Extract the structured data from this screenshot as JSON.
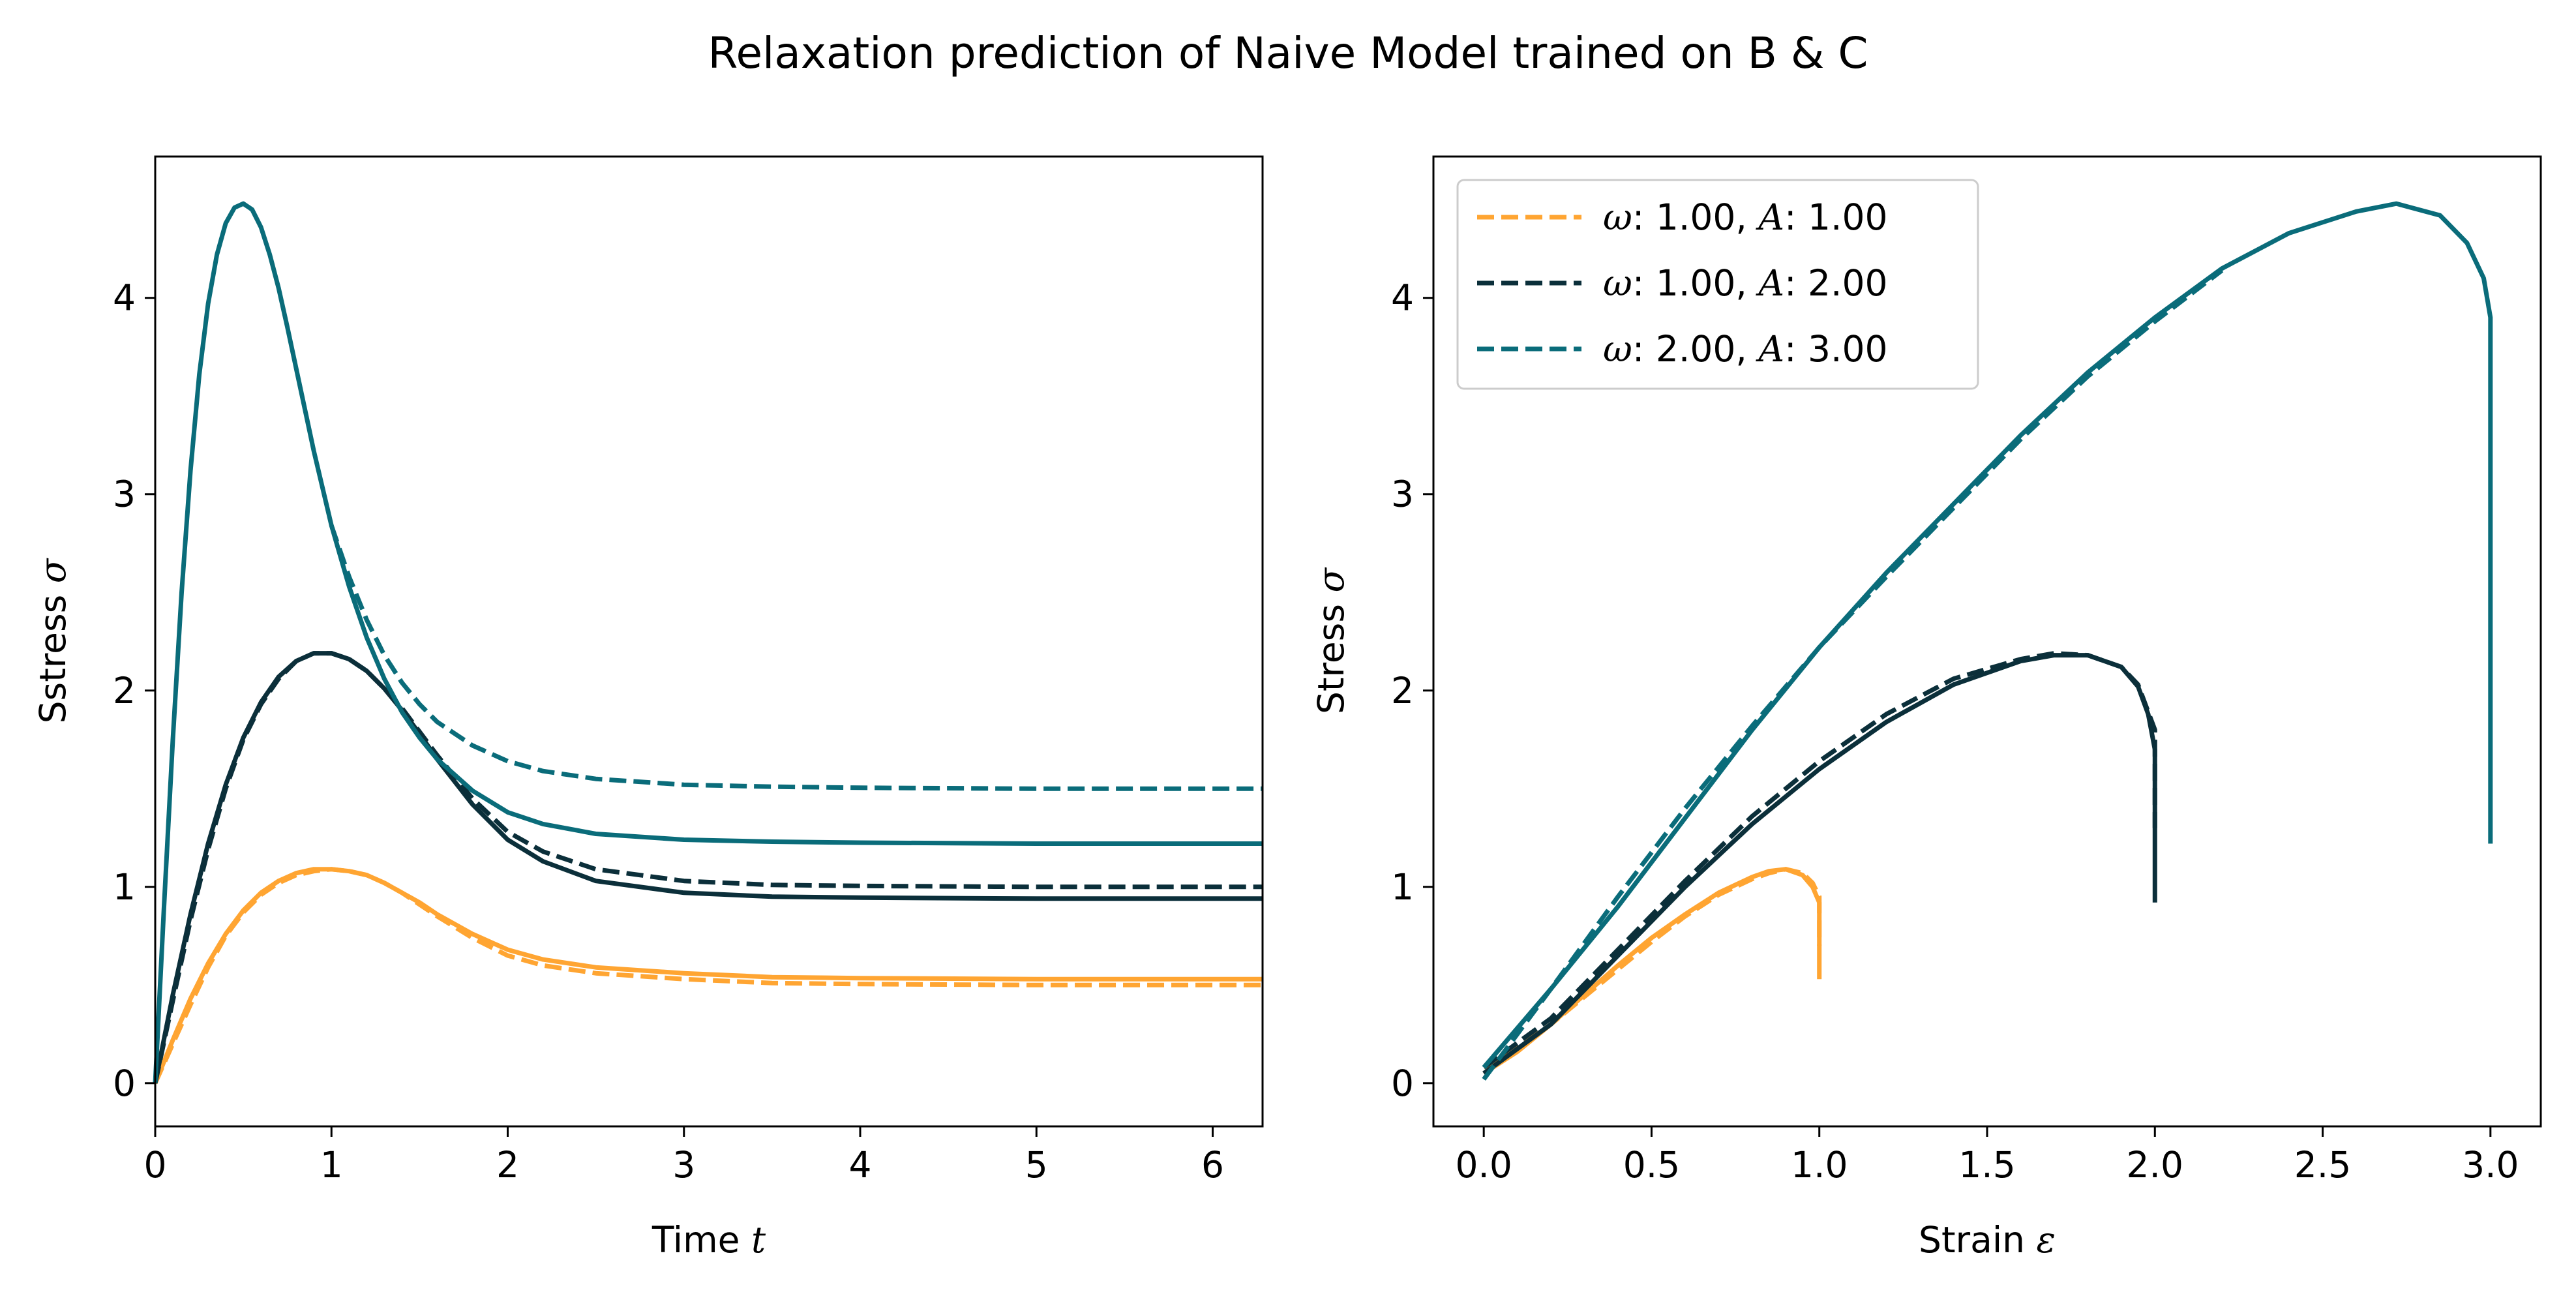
{
  "figure": {
    "title": "Relaxation prediction of Naive Model trained on B & C"
  },
  "chart_data": [
    {
      "type": "line",
      "xlabel_text": "Time ",
      "xlabel_symbol": "t",
      "ylabel_text": "Sstress ",
      "ylabel_symbol": "σ",
      "xlim": [
        0,
        6.283
      ],
      "ylim": [
        -0.22,
        4.72
      ],
      "xticks": [
        0,
        1,
        2,
        3,
        4,
        5,
        6
      ],
      "xtick_labels": [
        "0",
        "1",
        "2",
        "3",
        "4",
        "5",
        "6"
      ],
      "yticks": [
        0,
        1,
        2,
        3,
        4
      ],
      "ytick_labels": [
        "0",
        "1",
        "2",
        "3",
        "4"
      ],
      "grid": false,
      "series": [
        {
          "color": "#FFA532",
          "style": "solid",
          "x": [
            0,
            0.1,
            0.2,
            0.3,
            0.4,
            0.5,
            0.6,
            0.7,
            0.8,
            0.9,
            1.0,
            1.1,
            1.2,
            1.3,
            1.4,
            1.5,
            1.6,
            1.8,
            2.0,
            2.2,
            2.5,
            3.0,
            3.5,
            4.0,
            5.0,
            6.283
          ],
          "y": [
            0,
            0.22,
            0.43,
            0.61,
            0.76,
            0.88,
            0.97,
            1.03,
            1.07,
            1.09,
            1.09,
            1.08,
            1.06,
            1.02,
            0.97,
            0.92,
            0.86,
            0.76,
            0.68,
            0.63,
            0.59,
            0.56,
            0.54,
            0.535,
            0.53,
            0.53
          ]
        },
        {
          "color": "#FFA532",
          "style": "dashed",
          "x": [
            0,
            0.1,
            0.2,
            0.3,
            0.4,
            0.5,
            0.6,
            0.7,
            0.8,
            0.9,
            1.0,
            1.1,
            1.2,
            1.3,
            1.4,
            1.5,
            1.6,
            1.8,
            2.0,
            2.2,
            2.5,
            3.0,
            3.5,
            4.0,
            5.0,
            6.283
          ],
          "y": [
            0,
            0.2,
            0.4,
            0.59,
            0.75,
            0.87,
            0.96,
            1.02,
            1.06,
            1.08,
            1.09,
            1.08,
            1.06,
            1.02,
            0.97,
            0.91,
            0.85,
            0.74,
            0.65,
            0.6,
            0.56,
            0.53,
            0.51,
            0.505,
            0.5,
            0.5
          ]
        },
        {
          "color": "#0B2F3A",
          "style": "solid",
          "x": [
            0,
            0.1,
            0.2,
            0.3,
            0.4,
            0.5,
            0.6,
            0.7,
            0.8,
            0.9,
            1.0,
            1.1,
            1.2,
            1.3,
            1.4,
            1.5,
            1.6,
            1.8,
            2.0,
            2.2,
            2.5,
            3.0,
            3.5,
            4.0,
            5.0,
            6.283
          ],
          "y": [
            0,
            0.45,
            0.86,
            1.22,
            1.52,
            1.76,
            1.94,
            2.07,
            2.15,
            2.19,
            2.19,
            2.16,
            2.1,
            2.01,
            1.9,
            1.78,
            1.65,
            1.42,
            1.24,
            1.13,
            1.03,
            0.97,
            0.95,
            0.945,
            0.94,
            0.94
          ]
        },
        {
          "color": "#0B2F3A",
          "style": "dashed",
          "x": [
            0,
            0.1,
            0.2,
            0.3,
            0.4,
            0.5,
            0.6,
            0.7,
            0.8,
            0.9,
            1.0,
            1.1,
            1.2,
            1.3,
            1.4,
            1.5,
            1.6,
            1.8,
            2.0,
            2.2,
            2.5,
            3.0,
            3.5,
            4.0,
            5.0,
            6.283
          ],
          "y": [
            0,
            0.42,
            0.83,
            1.19,
            1.5,
            1.75,
            1.93,
            2.06,
            2.15,
            2.19,
            2.19,
            2.16,
            2.1,
            2.01,
            1.91,
            1.79,
            1.67,
            1.45,
            1.28,
            1.18,
            1.09,
            1.03,
            1.01,
            1.005,
            1.0,
            1.0
          ]
        },
        {
          "color": "#0A6C7A",
          "style": "solid",
          "x": [
            0,
            0.05,
            0.1,
            0.15,
            0.2,
            0.25,
            0.3,
            0.35,
            0.4,
            0.45,
            0.5,
            0.55,
            0.6,
            0.65,
            0.7,
            0.75,
            0.8,
            0.9,
            1.0,
            1.1,
            1.2,
            1.3,
            1.4,
            1.5,
            1.6,
            1.8,
            2.0,
            2.2,
            2.5,
            3.0,
            3.5,
            4.0,
            5.0,
            6.283
          ],
          "y": [
            0,
            0.9,
            1.75,
            2.5,
            3.12,
            3.61,
            3.97,
            4.22,
            4.38,
            4.46,
            4.48,
            4.45,
            4.36,
            4.22,
            4.05,
            3.85,
            3.64,
            3.22,
            2.84,
            2.53,
            2.27,
            2.06,
            1.89,
            1.76,
            1.65,
            1.49,
            1.38,
            1.32,
            1.27,
            1.24,
            1.23,
            1.225,
            1.22,
            1.22
          ]
        },
        {
          "color": "#0A6C7A",
          "style": "dashed",
          "x": [
            1.0,
            1.1,
            1.2,
            1.3,
            1.4,
            1.5,
            1.6,
            1.8,
            2.0,
            2.2,
            2.5,
            3.0,
            3.5,
            4.0,
            5.0,
            6.283
          ],
          "y": [
            2.84,
            2.58,
            2.36,
            2.18,
            2.04,
            1.93,
            1.84,
            1.72,
            1.64,
            1.59,
            1.55,
            1.52,
            1.51,
            1.505,
            1.5,
            1.5
          ]
        }
      ]
    },
    {
      "type": "line",
      "xlabel_text": "Strain ",
      "xlabel_symbol": "ε",
      "ylabel_text": "Stress ",
      "ylabel_symbol": "σ",
      "xlim": [
        -0.15,
        3.15
      ],
      "ylim": [
        -0.22,
        4.72
      ],
      "xticks": [
        0,
        0.5,
        1,
        1.5,
        2,
        2.5,
        3
      ],
      "xtick_labels": [
        "0.0",
        "0.5",
        "1.0",
        "1.5",
        "2.0",
        "2.5",
        "3.0"
      ],
      "yticks": [
        0,
        1,
        2,
        3,
        4
      ],
      "ytick_labels": [
        "0",
        "1",
        "2",
        "3",
        "4"
      ],
      "grid": false,
      "legend": {
        "position": "upper-left",
        "entries": [
          {
            "omega_label": "ω",
            "text_a": ": 1.00, ",
            "amp_label": "A",
            "text_b": ": 1.00",
            "color": "#FFA532"
          },
          {
            "omega_label": "ω",
            "text_a": ": 1.00, ",
            "amp_label": "A",
            "text_b": ": 2.00",
            "color": "#0B2F3A"
          },
          {
            "omega_label": "ω",
            "text_a": ": 2.00, ",
            "amp_label": "A",
            "text_b": ": 3.00",
            "color": "#0A6C7A"
          }
        ]
      },
      "series": [
        {
          "color": "#FFA532",
          "style": "solid",
          "x": [
            0.0,
            0.1,
            0.2,
            0.3,
            0.4,
            0.5,
            0.6,
            0.7,
            0.8,
            0.85,
            0.9,
            0.95,
            0.98,
            1.0,
            1.0,
            1.0
          ],
          "y": [
            0.05,
            0.16,
            0.3,
            0.45,
            0.6,
            0.74,
            0.86,
            0.97,
            1.05,
            1.08,
            1.09,
            1.06,
            1.0,
            0.92,
            0.7,
            0.53
          ]
        },
        {
          "color": "#FFA532",
          "style": "dashed",
          "x": [
            0.0,
            0.1,
            0.2,
            0.3,
            0.4,
            0.5,
            0.6,
            0.7,
            0.8,
            0.85,
            0.9,
            0.95,
            0.98,
            1.0,
            1.0
          ],
          "y": [
            0.08,
            0.18,
            0.3,
            0.44,
            0.58,
            0.72,
            0.85,
            0.96,
            1.04,
            1.07,
            1.09,
            1.07,
            1.02,
            0.95,
            0.7
          ]
        },
        {
          "color": "#0B2F3A",
          "style": "solid",
          "x": [
            0.0,
            0.2,
            0.4,
            0.6,
            0.8,
            1.0,
            1.2,
            1.4,
            1.6,
            1.7,
            1.8,
            1.9,
            1.95,
            1.98,
            2.0,
            2.0,
            2.0
          ],
          "y": [
            0.05,
            0.3,
            0.65,
            1.0,
            1.32,
            1.6,
            1.84,
            2.03,
            2.15,
            2.18,
            2.18,
            2.12,
            2.02,
            1.88,
            1.7,
            1.3,
            0.92
          ]
        },
        {
          "color": "#0B2F3A",
          "style": "dashed",
          "x": [
            0.0,
            0.2,
            0.4,
            0.6,
            0.8,
            1.0,
            1.2,
            1.4,
            1.6,
            1.7,
            1.8,
            1.9,
            1.95,
            2.0,
            2.0
          ],
          "y": [
            0.08,
            0.33,
            0.68,
            1.03,
            1.36,
            1.64,
            1.88,
            2.06,
            2.16,
            2.19,
            2.18,
            2.12,
            2.03,
            1.8,
            1.3
          ]
        },
        {
          "color": "#0A6C7A",
          "style": "solid",
          "x": [
            0.0,
            0.2,
            0.4,
            0.6,
            0.8,
            1.0,
            1.2,
            1.4,
            1.6,
            1.8,
            2.0,
            2.2,
            2.4,
            2.6,
            2.72,
            2.85,
            2.93,
            2.98,
            3.0,
            3.0,
            3.0
          ],
          "y": [
            0.08,
            0.48,
            0.9,
            1.35,
            1.8,
            2.22,
            2.6,
            2.95,
            3.3,
            3.62,
            3.9,
            4.15,
            4.33,
            4.44,
            4.48,
            4.42,
            4.28,
            4.1,
            3.9,
            2.5,
            1.22
          ]
        },
        {
          "color": "#0A6C7A",
          "style": "dashed",
          "x": [
            0.0,
            0.2,
            0.4,
            0.6,
            0.8,
            1.0,
            1.2,
            1.4,
            1.6,
            1.8,
            2.0,
            2.2
          ],
          "y": [
            0.02,
            0.48,
            0.95,
            1.4,
            1.82,
            2.22,
            2.58,
            2.93,
            3.28,
            3.6,
            3.88,
            4.14
          ]
        }
      ]
    }
  ]
}
